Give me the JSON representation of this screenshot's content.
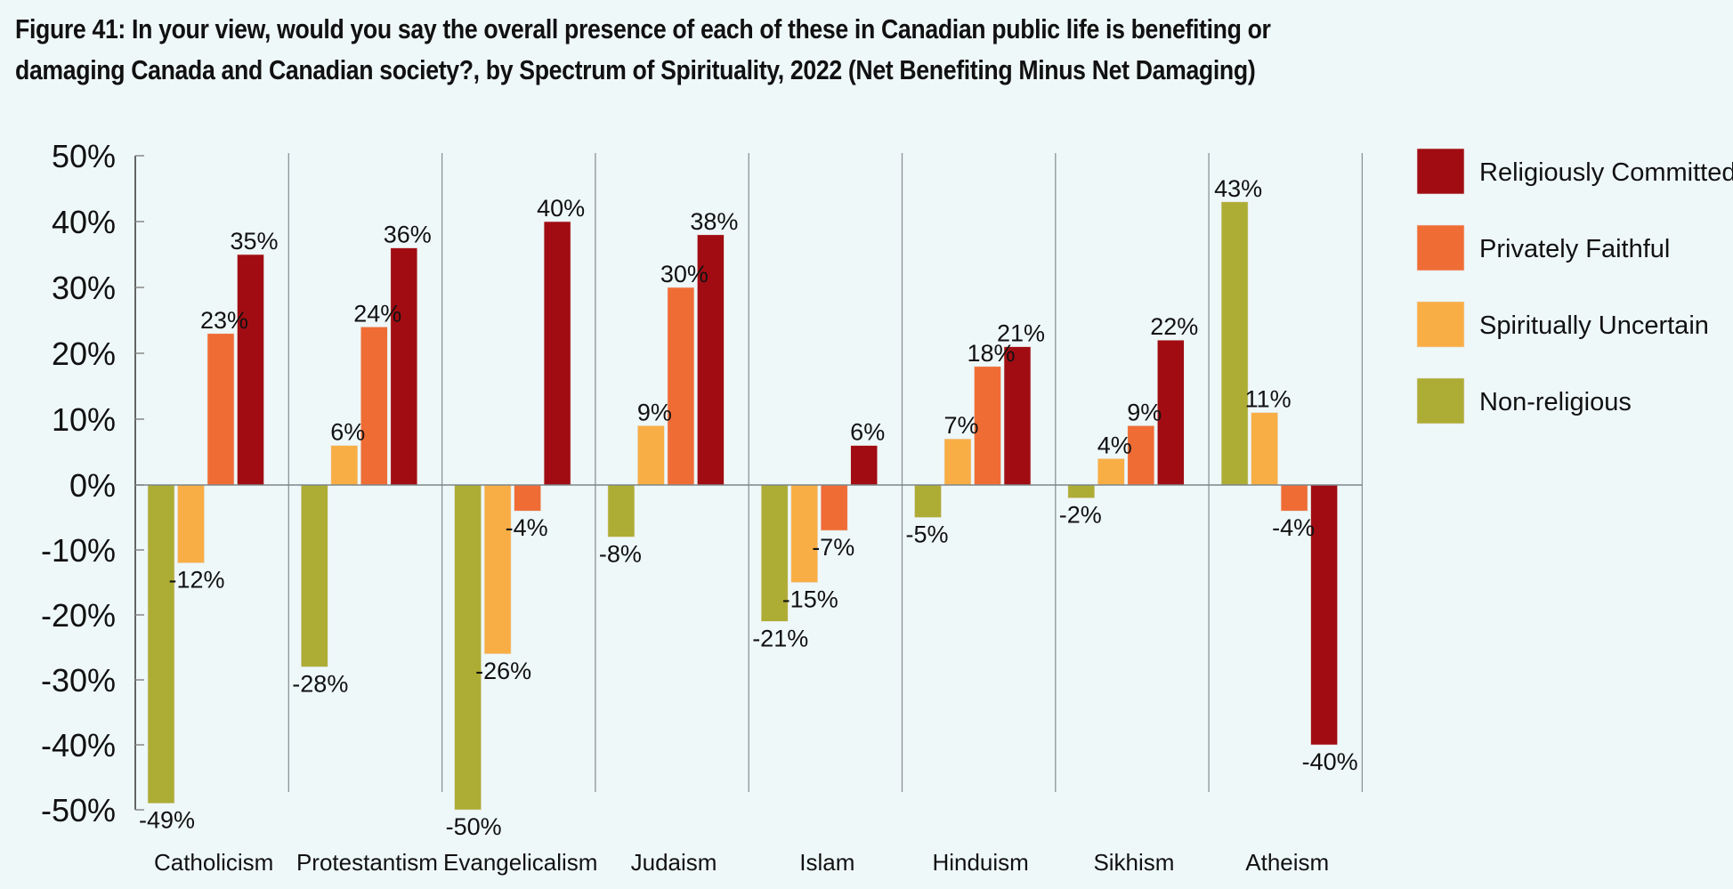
{
  "chart_data": {
    "type": "bar",
    "title": "Figure 41: In your view, would you say the overall presence of each of these in Canadian public life is benefiting or damaging Canada and Canadian society?, by Spectrum of Spirituality, 2022 (Net Benefiting Minus Net Damaging)",
    "title_lines": [
      "Figure 41: In your view, would you say the overall presence of each of these in Canadian public life is benefiting or",
      "damaging Canada and Canadian society?, by Spectrum of Spirituality, 2022 (Net Benefiting Minus Net Damaging)"
    ],
    "xlabel": "",
    "ylabel": "",
    "ylim": [
      -50,
      50
    ],
    "yticks": [
      50,
      40,
      30,
      20,
      10,
      0,
      -10,
      -20,
      -30,
      -40,
      -50
    ],
    "ytick_labels": [
      "50%",
      "40%",
      "30%",
      "20%",
      "10%",
      "0%",
      "-10%",
      "-20%",
      "-30%",
      "-40%",
      "-50%"
    ],
    "grid": false,
    "legend_position": "right",
    "categories": [
      "Catholicism",
      "Protestantism",
      "Evangelicalism",
      "Judaism",
      "Islam",
      "Hinduism",
      "Sikhism",
      "Atheism"
    ],
    "series": [
      {
        "name": "Non-religious",
        "color": "#adad35",
        "values": [
          -49,
          -28,
          -50,
          -8,
          -21,
          -5,
          -2,
          43
        ]
      },
      {
        "name": "Spiritually Uncertain",
        "color": "#f9ae45",
        "values": [
          -12,
          6,
          -26,
          9,
          -15,
          7,
          4,
          11
        ]
      },
      {
        "name": "Privately Faithful",
        "color": "#f06c35",
        "values": [
          23,
          24,
          -4,
          30,
          -7,
          18,
          9,
          -4
        ]
      },
      {
        "name": "Religiously Committed",
        "color": "#a10c13",
        "values": [
          35,
          36,
          40,
          38,
          6,
          21,
          22,
          -40
        ]
      }
    ],
    "legend_order": [
      "Religiously Committed",
      "Privately Faithful",
      "Spiritually Uncertain",
      "Non-religious"
    ],
    "value_label_suffix": "%"
  }
}
